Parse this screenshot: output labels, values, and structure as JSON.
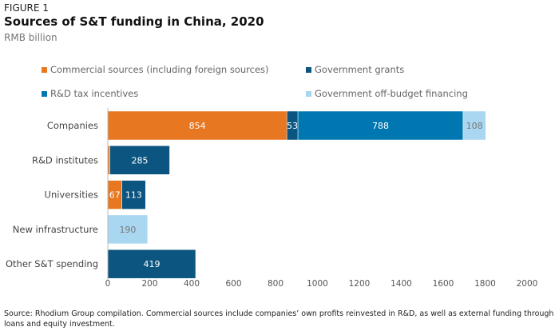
{
  "figure_label": "FIGURE 1",
  "chart_data": {
    "type": "bar",
    "orientation": "horizontal",
    "stacked": true,
    "title": "Sources of S&T funding in China, 2020",
    "subtitle": "RMB billion",
    "categories": [
      "Companies",
      "R&D institutes",
      "Universities",
      "New infrastructure",
      "Other S&T spending"
    ],
    "series": [
      {
        "name": "Commercial sources (including foreign sources)",
        "color": "#e87722",
        "values": [
          854,
          10,
          67,
          0,
          0
        ],
        "labels": [
          "854",
          "",
          "67",
          "",
          ""
        ]
      },
      {
        "name": "Government grants",
        "color": "#0b5580",
        "values": [
          53,
          285,
          113,
          0,
          419
        ],
        "labels": [
          "53",
          "285",
          "113",
          "",
          "419"
        ]
      },
      {
        "name": "R&D tax incentives",
        "color": "#0077b0",
        "values": [
          788,
          0,
          0,
          0,
          0
        ],
        "labels": [
          "788",
          "",
          "",
          "",
          ""
        ]
      },
      {
        "name": "Government off-budget financing",
        "color": "#a9d7f1",
        "values": [
          108,
          0,
          0,
          190,
          0
        ],
        "labels": [
          "108",
          "",
          "",
          "190",
          ""
        ]
      }
    ],
    "xlim": [
      0,
      2000
    ],
    "xticks": [
      "0",
      "200",
      "400",
      "600",
      "800",
      "1000",
      "1200",
      "1400",
      "1600",
      "1800",
      "2000"
    ],
    "grid": false,
    "legend_position": "top"
  },
  "source": "Source: Rhodium Group compilation. Commercial sources include companies’ own profits reinvested in R&D, as well as external funding through loans and equity investment."
}
